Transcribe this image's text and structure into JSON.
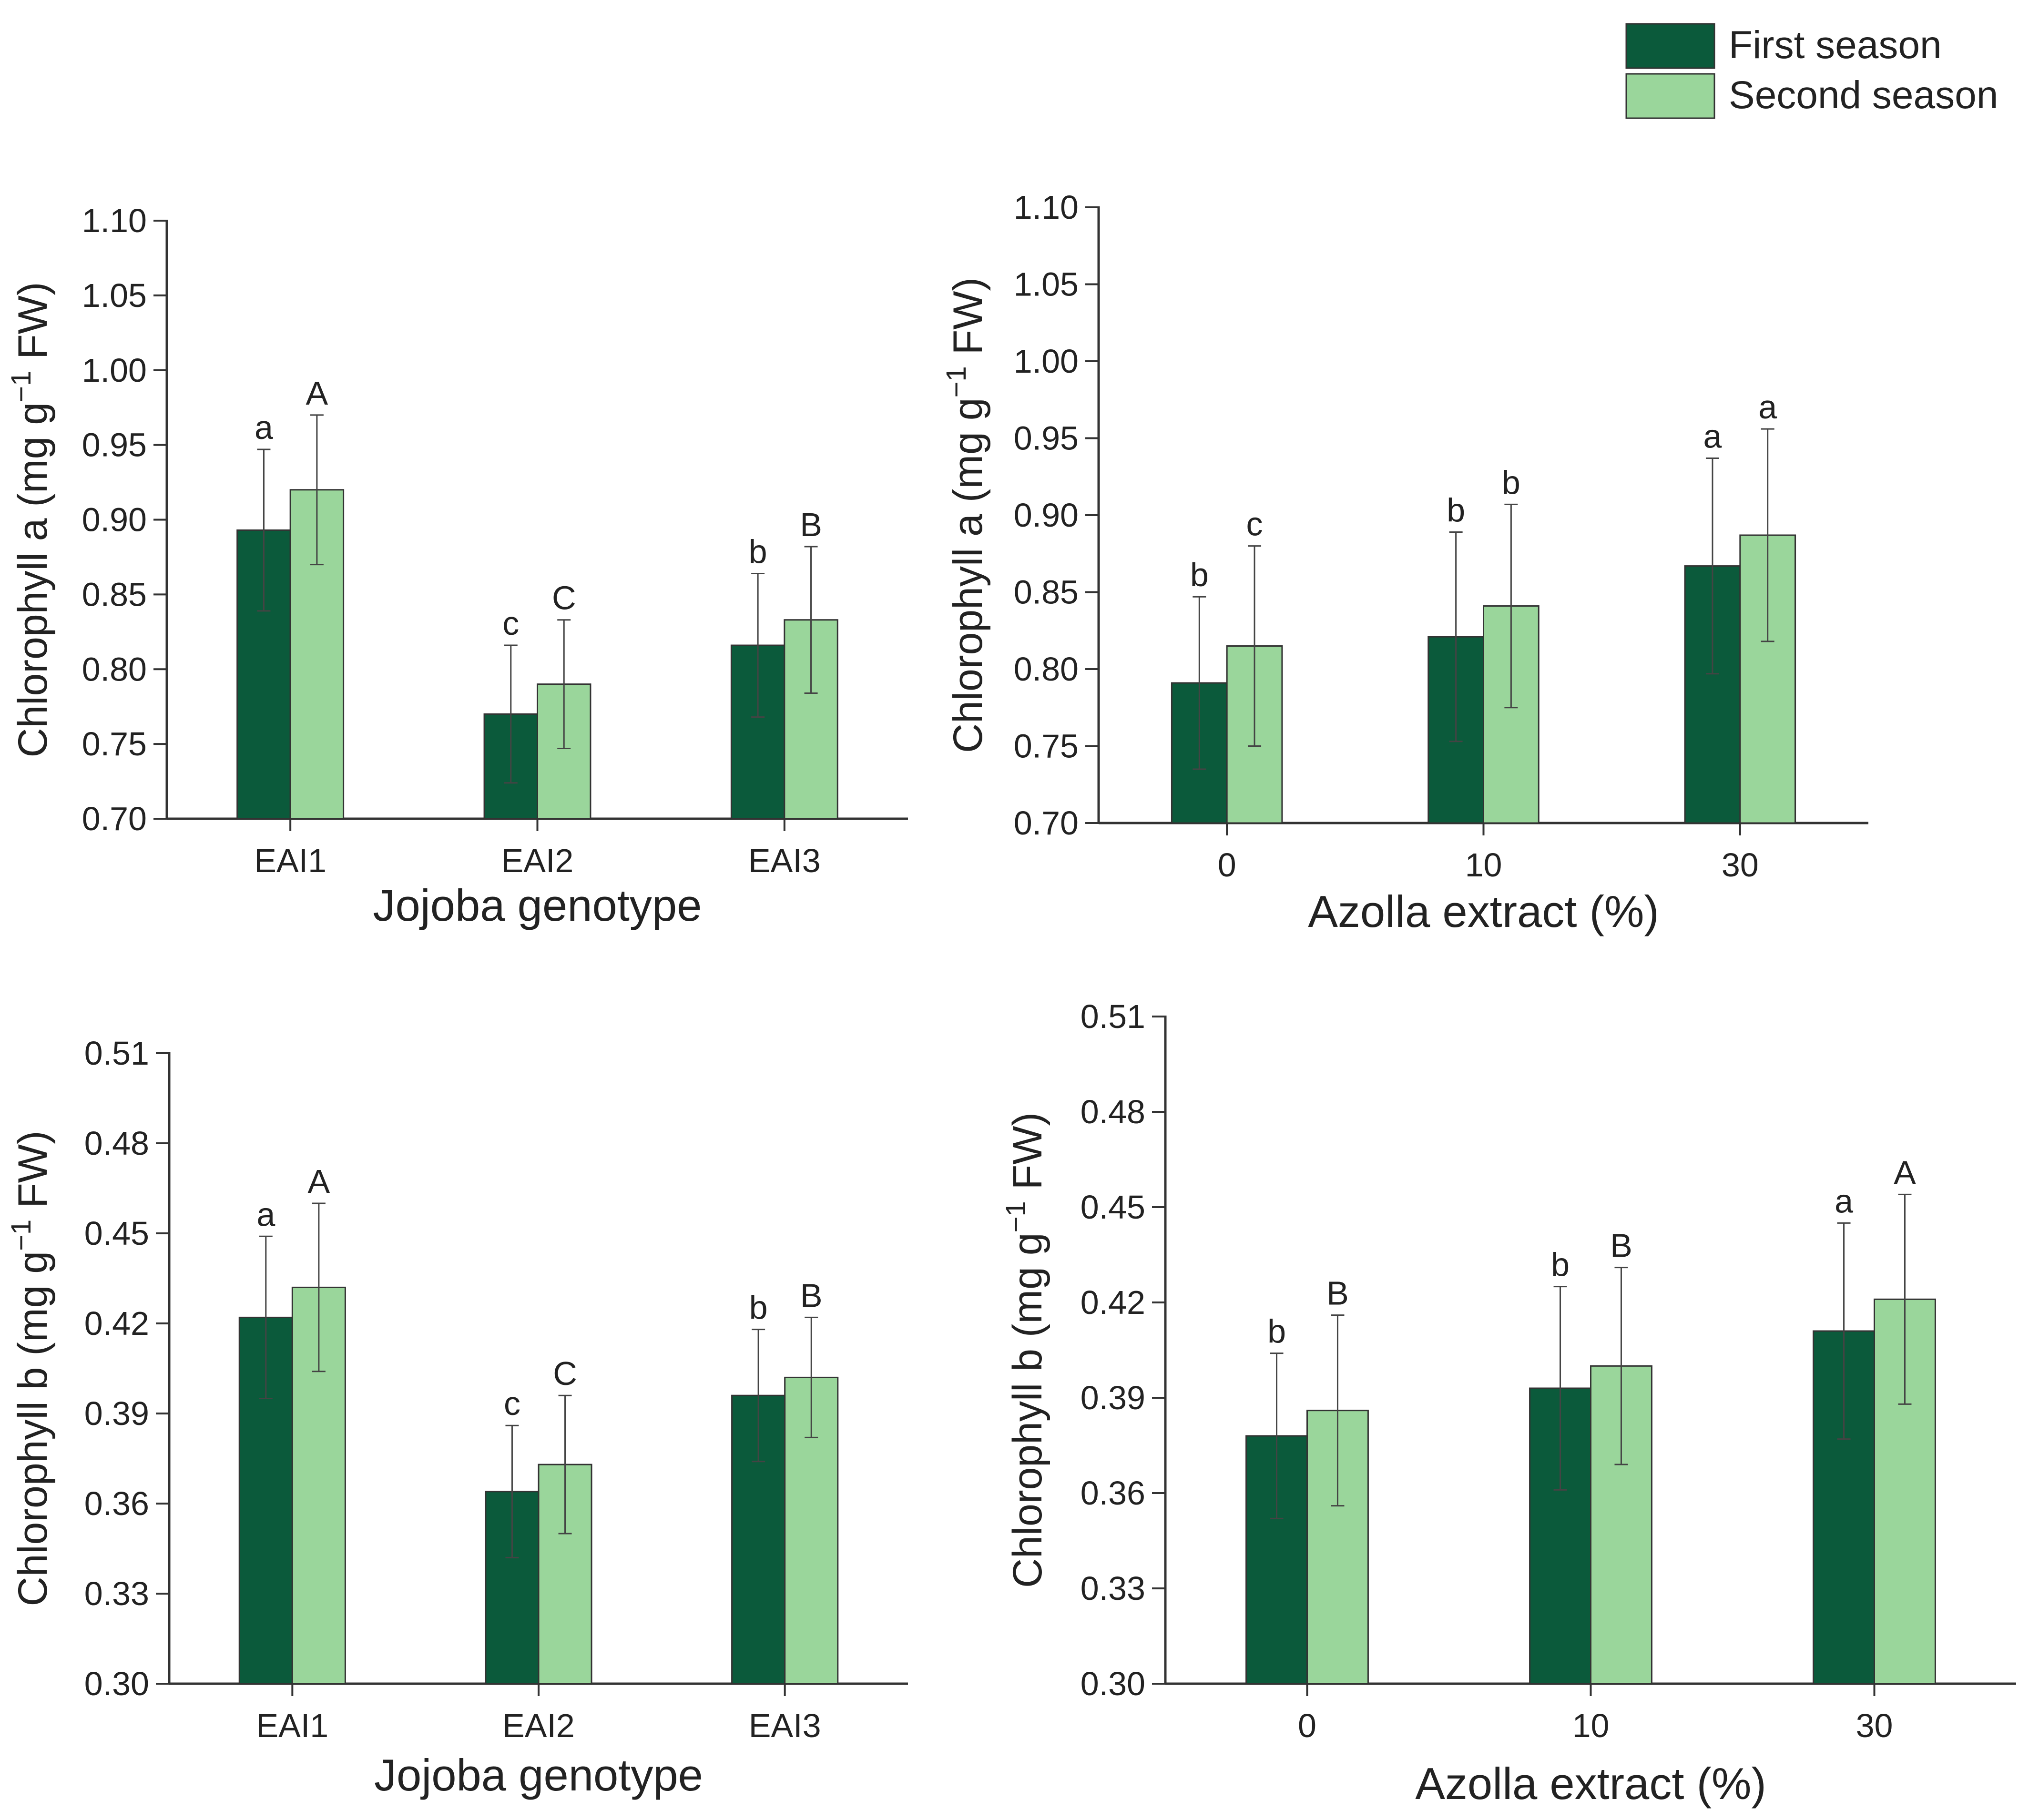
{
  "legend": {
    "entries": [
      {
        "label": "First season",
        "color": "#0b5a3b"
      },
      {
        "label": "Second season",
        "color": "#9ad69b"
      }
    ]
  },
  "chart_data": [
    {
      "id": "chart-a-genotype",
      "type": "bar",
      "title": "",
      "ylabel_main": "Chlorophyll a (mg g",
      "ylabel_sup": "−1",
      "ylabel_tail": " FW)",
      "xlabel": "Jojoba genotype",
      "ylim": [
        0.7,
        1.1
      ],
      "yticks": [
        "0.70",
        "0.75",
        "0.80",
        "0.85",
        "0.90",
        "0.95",
        "1.00",
        "1.05",
        "1.10"
      ],
      "categories": [
        "EAI1",
        "EAI2",
        "EAI3"
      ],
      "series": [
        {
          "name": "First season",
          "values": [
            0.893,
            0.77,
            0.816
          ],
          "errors": [
            0.054,
            0.046,
            0.048
          ],
          "letters": [
            "a",
            "c",
            "b"
          ]
        },
        {
          "name": "Second season",
          "values": [
            0.92,
            0.79,
            0.833
          ],
          "errors": [
            0.05,
            0.043,
            0.049
          ],
          "letters": [
            "A",
            "C",
            "B"
          ]
        }
      ]
    },
    {
      "id": "chart-a-azolla",
      "type": "bar",
      "title": "",
      "ylabel_main": "Chlorophyll a (mg g",
      "ylabel_sup": "−1",
      "ylabel_tail": " FW)",
      "xlabel": "Azolla extract (%)",
      "ylim": [
        0.7,
        1.1
      ],
      "yticks": [
        "0.70",
        "0.75",
        "0.80",
        "0.85",
        "0.90",
        "0.95",
        "1.00",
        "1.05",
        "1.10"
      ],
      "categories": [
        "0",
        "10",
        "30"
      ],
      "series": [
        {
          "name": "First season",
          "values": [
            0.791,
            0.821,
            0.867
          ],
          "errors": [
            0.056,
            0.068,
            0.07
          ],
          "letters": [
            "b",
            "b",
            "a"
          ]
        },
        {
          "name": "Second season",
          "values": [
            0.815,
            0.841,
            0.887
          ],
          "errors": [
            0.065,
            0.066,
            0.069
          ],
          "letters": [
            "c",
            "b",
            "a"
          ]
        }
      ]
    },
    {
      "id": "chart-b-genotype",
      "type": "bar",
      "title": "",
      "ylabel_main": "Chlorophyll b (mg g",
      "ylabel_sup": "−1",
      "ylabel_tail": " FW)",
      "xlabel": "Jojoba genotype",
      "ylim": [
        0.3,
        0.51
      ],
      "yticks": [
        "0.30",
        "0.33",
        "0.36",
        "0.39",
        "0.42",
        "0.45",
        "0.48",
        "0.51"
      ],
      "categories": [
        "EAI1",
        "EAI2",
        "EAI3"
      ],
      "series": [
        {
          "name": "First season",
          "values": [
            0.422,
            0.364,
            0.396
          ],
          "errors": [
            0.027,
            0.022,
            0.022
          ],
          "letters": [
            "a",
            "c",
            "b"
          ]
        },
        {
          "name": "Second season",
          "values": [
            0.432,
            0.373,
            0.402
          ],
          "errors": [
            0.028,
            0.023,
            0.02
          ],
          "letters": [
            "A",
            "C",
            "B"
          ]
        }
      ]
    },
    {
      "id": "chart-b-azolla",
      "type": "bar",
      "title": "",
      "ylabel_main": "Chlorophyll b (mg g",
      "ylabel_sup": "−1",
      "ylabel_tail": " FW)",
      "xlabel": "Azolla extract (%)",
      "ylim": [
        0.3,
        0.51
      ],
      "yticks": [
        "0.30",
        "0.33",
        "0.36",
        "0.39",
        "0.42",
        "0.45",
        "0.48",
        "0.51"
      ],
      "categories": [
        "0",
        "10",
        "30"
      ],
      "series": [
        {
          "name": "First season",
          "values": [
            0.378,
            0.393,
            0.411
          ],
          "errors": [
            0.026,
            0.032,
            0.034
          ],
          "letters": [
            "b",
            "b",
            "a"
          ]
        },
        {
          "name": "Second season",
          "values": [
            0.386,
            0.4,
            0.421
          ],
          "errors": [
            0.03,
            0.031,
            0.033
          ],
          "letters": [
            "B",
            "B",
            "A"
          ]
        }
      ]
    }
  ]
}
